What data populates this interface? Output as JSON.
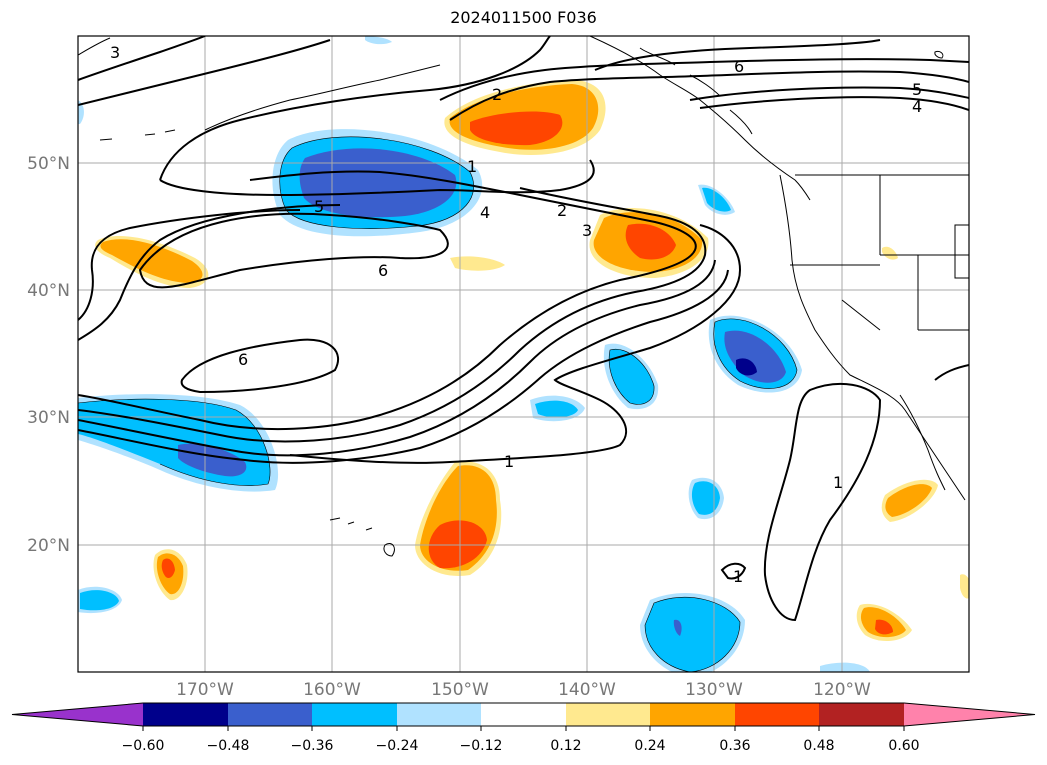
{
  "title": "2024011500 F036",
  "lat_labels": [
    "50°N",
    "40°N",
    "30°N",
    "20°N"
  ],
  "lon_labels": [
    "170°W",
    "160°W",
    "150°W",
    "140°W",
    "130°W",
    "120°W"
  ],
  "contour_labels": [
    "3",
    "2",
    "1",
    "5",
    "4",
    "2",
    "3",
    "6",
    "6",
    "6",
    "5",
    "4",
    "1",
    "1",
    "1"
  ],
  "colorbar": {
    "ticks": [
      "−0.60",
      "−0.48",
      "−0.36",
      "−0.24",
      "−0.12",
      "0.12",
      "0.24",
      "0.36",
      "0.48",
      "0.60"
    ],
    "colors": [
      "#9932cc",
      "#00008b",
      "#3a5fcd",
      "#00bfff",
      "#b0e2ff",
      "#ffffff",
      "#ffe98f",
      "#ffa500",
      "#ff4500",
      "#b22222",
      "#ff82ab"
    ]
  },
  "colors": {
    "navy": "#00008b",
    "royal": "#3a5fcd",
    "deepsky": "#00bfff",
    "lightsky": "#b0e2ff",
    "khaki": "#ffe98f",
    "orange": "#ffa500",
    "orangered": "#ff4500"
  }
}
